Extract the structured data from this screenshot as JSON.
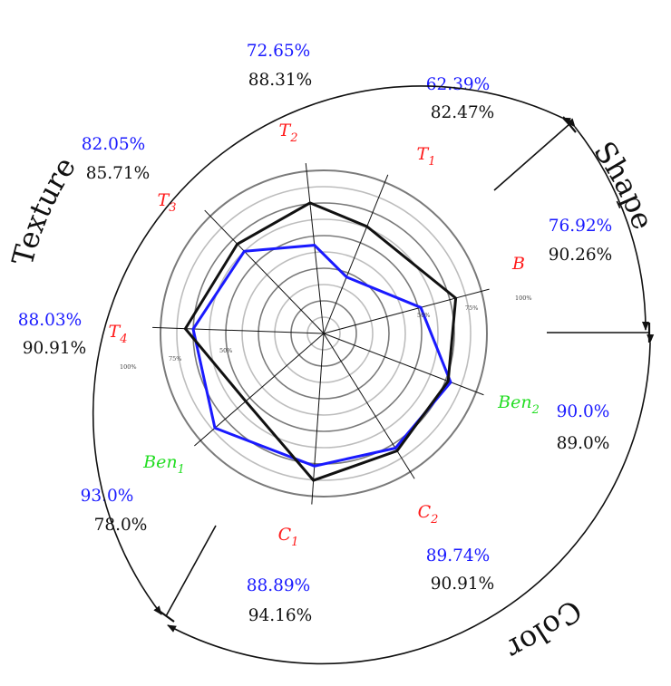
{
  "chart_data": {
    "type": "radar",
    "axes": [
      {
        "label": "B",
        "sub": "",
        "style": "red",
        "blue": "76.92%",
        "black": "90.26%",
        "blue_value": 76.92,
        "black_value": 90.26
      },
      {
        "label": "T",
        "sub": "1",
        "style": "red",
        "blue": "62.39%",
        "black": "82.47%",
        "blue_value": 62.39,
        "black_value": 82.47
      },
      {
        "label": "T",
        "sub": "2",
        "style": "red",
        "blue": "72.65%",
        "black": "88.31%",
        "blue_value": 72.65,
        "black_value": 88.31
      },
      {
        "label": "T",
        "sub": "3",
        "style": "red",
        "blue": "82.05%",
        "black": "85.71%",
        "blue_value": 82.05,
        "black_value": 85.71
      },
      {
        "label": "T",
        "sub": "4",
        "style": "red",
        "blue": "88.03%",
        "black": "90.91%",
        "blue_value": 88.03,
        "black_value": 90.91
      },
      {
        "label": "Ben",
        "sub": "1",
        "style": "green",
        "blue": "93.0%",
        "black": "78.0%",
        "blue_value": 93.0,
        "black_value": 78.0
      },
      {
        "label": "C",
        "sub": "1",
        "style": "red",
        "blue": "88.89%",
        "black": "94.16%",
        "blue_value": 88.89,
        "black_value": 94.16
      },
      {
        "label": "C",
        "sub": "2",
        "style": "red",
        "blue": "89.74%",
        "black": "90.91%",
        "blue_value": 89.74,
        "black_value": 90.91
      },
      {
        "label": "Ben",
        "sub": "2",
        "style": "green",
        "blue": "90.0%",
        "black": "89.0%",
        "blue_value": 90.0,
        "black_value": 89.0
      }
    ],
    "series_colors": {
      "blue": "#1a1aff",
      "black": "#111111"
    },
    "axis_label_colors": {
      "red": "#ff1a1a",
      "green": "#22dd22"
    },
    "tick_labels": [
      "50%",
      "75%",
      "100%"
    ],
    "groups": [
      "Texture",
      "Shape",
      "Color"
    ],
    "rings": [
      0,
      10,
      20,
      30,
      40,
      50,
      60,
      70,
      80,
      90,
      100
    ],
    "range": [
      0,
      100
    ]
  }
}
